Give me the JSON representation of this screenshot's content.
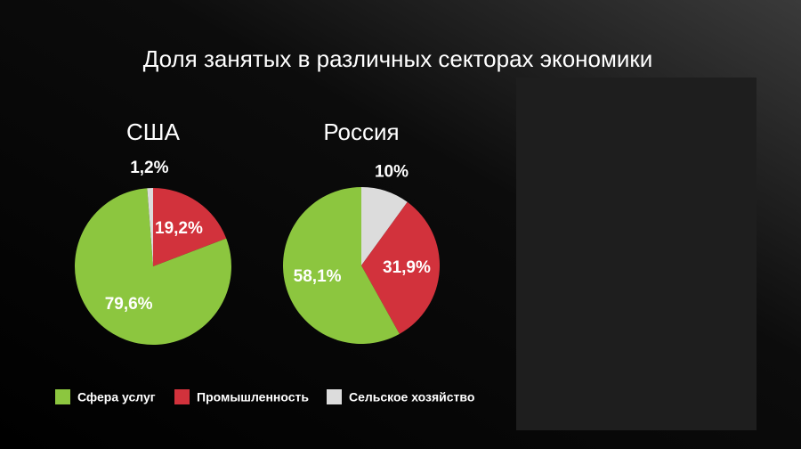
{
  "title": "Доля занятых в различных секторах экономики",
  "legend": [
    {
      "name": "Сфера услуг",
      "color": "#8cc63f"
    },
    {
      "name": "Промышленность",
      "color": "#d2323c"
    },
    {
      "name": "Сельское хозяйство",
      "color": "#dcdcdc"
    }
  ],
  "chart_data": [
    {
      "type": "pie",
      "title": "США",
      "values": [
        79.6,
        19.2,
        1.2
      ],
      "value_labels": [
        "79,6%",
        "19,2%",
        "1,2%"
      ]
    },
    {
      "type": "pie",
      "title": "Россия",
      "values": [
        58.1,
        31.9,
        10
      ],
      "value_labels": [
        "58,1%",
        "31,9%",
        "10%"
      ]
    }
  ]
}
